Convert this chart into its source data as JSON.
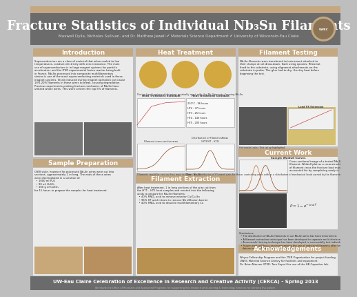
{
  "title": "Fracture Statistics of Individual Nb₃Sn Filaments",
  "subtitle": "Maxwell Dylla, Nicholas Sullivan, and Dr. Matthew Jewell ✔ Materials Science Department ✔ University of Wisconsin-Eau Claire",
  "header_bg": "#6B6B6B",
  "header_thin_bg": "#C4A882",
  "title_color": "#FFFFFF",
  "subtitle_color": "#DDDDDD",
  "body_bg": "#BEBEBE",
  "section_header_bg": "#C4A882",
  "section_header_color": "#FFFFFF",
  "footer_bg": "#6B6B6B",
  "footer_text": "UW-Eau Claire Celebration of Excellence in Research and Creative Activity (CERCA) - Spring 2013",
  "footer_color": "#FFFFFF",
  "footer_subtext": "We thank the Office of Research and Sponsored Programs for supporting this research and Learning & Technology Services for printing this poster.",
  "footer_subtext_color": "#BBBBBB",
  "white_box": "#EBEBEB",
  "intro_text": "Superconductors are a class of material that when cooled to low temperatures, conduct electricity with zero resistance. The main use of superconductors is in large magnet systems for particle accelerators and the ITER experimental fusion reactor being built in France. Nb₃Sn processed into composite multifilamentary strains is one of the most superconducting materials used in these magnet systems due to contain Sn₂. Strain induced during magnet operation. As many 10%-20% filaments in these wires break, causing a degradation of the performance of the magnets. Previous experiments probing the fracture mechanics of Nb₃Sn filaments have utilized whole wires in their tests. This work centers the top 5% of filaments from their composite wires for testing and is therefore able to study the intrinsic properties of Nb₃Sn.",
  "sample_prep_text": "OSW style, however Sn processed Nb₃Sn wires were cut into sections, approximately 1 in long.\nThe ends of these wires were electroplated in a solution of:\n  • 1000 ml H₂O\n  • 90 ml H₂SO₄\n  • 100 g of CuSO₄\nfor 15 hours to prepare the samples for heat treatment.",
  "heat_text": "Electroplated wires, heat treated utilizing a quartz tube and heat-treated in a furnace to react the Sn filaments with the Nb cores, creating Nb₃Sn. Wires are reacted after processing because Nb₃Sn is a brittle material and would fracture under the extreme bending processing.",
  "filament_text": "After heat treatment, 1 in long sections of the wire cut from the HT1 - HT5 heat samples and reacted into the following acids to prepare for Nb₃Sn filaments:\n  • 40% HNO₃ acid to remove exterior Cu/Cu-Sn\n  • 96% HF acid nitrate to remove Nb diffusion barrier\n  • 40% HNO₃ acid to dissolve multifilamentary Cu",
  "filament_testing_text": "Nb₃Sn filaments were transferred to instrument attached to their clamps at set draw-down. Each using epoxies. Rheostat fixed to the substrate, using alignment attachments on the substrate in probe. The glue had to dry, the day heat before beginning the test.",
  "current_work_text": "Cross-sectional image of a tested Nb₃Sn filament. Weibull plot as a reconstruction of filament cross the fracture load must be accounted for by completing analysis.",
  "acknowledgements_text": "Weyco Fellowship Program and the ITER Organization for project funding.\nUWEC Material Science Library for facilities and equipment.\nDr. Brian Maxson (ITER, Tore Supra) for use of the HB Capacitor lab."
}
